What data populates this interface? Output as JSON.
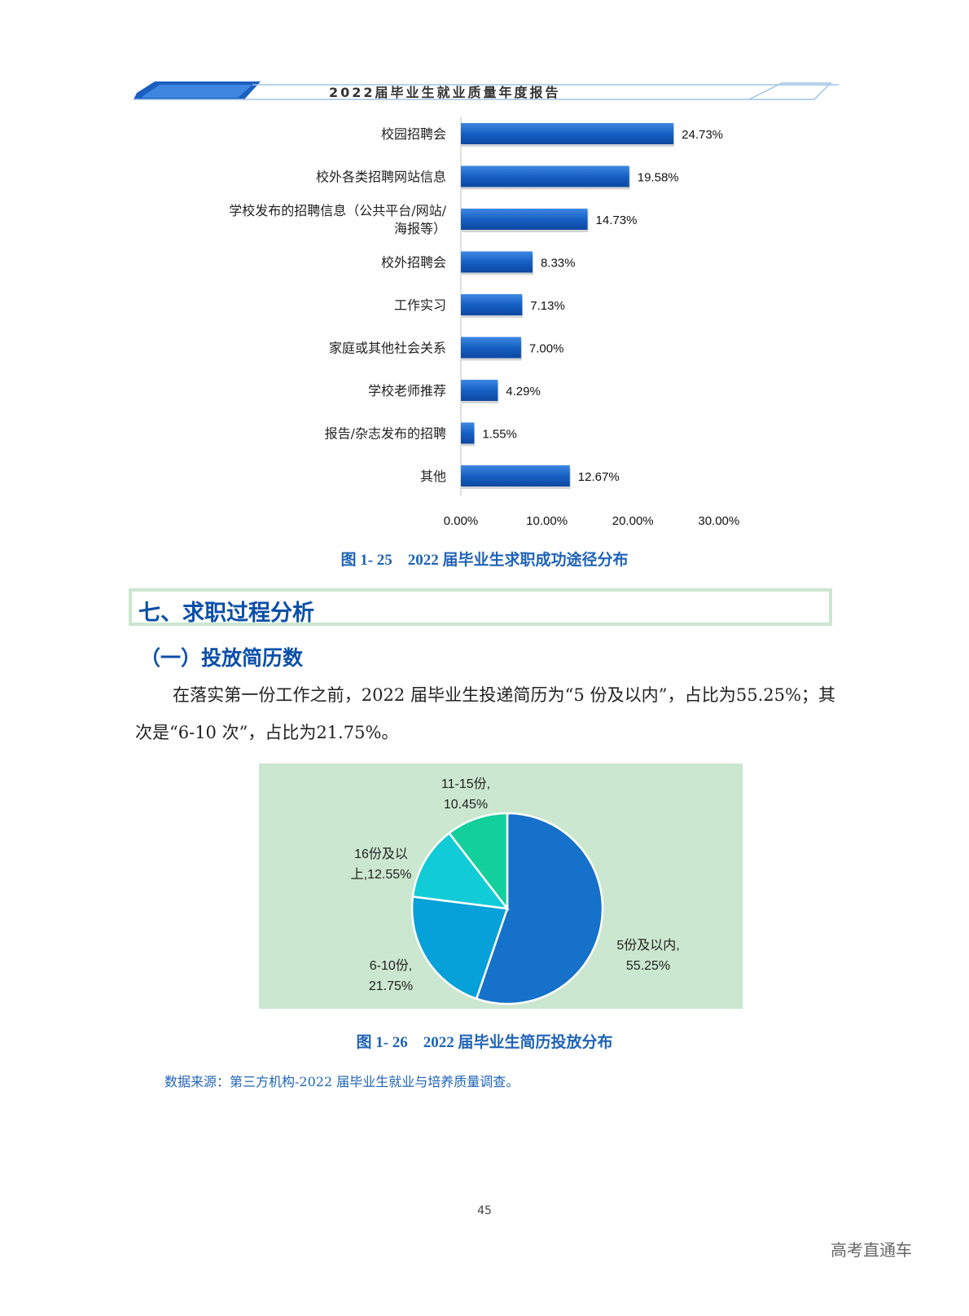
{
  "header": {
    "title": "2022届毕业生就业质量年度报告"
  },
  "chart_data": [
    {
      "type": "bar",
      "orientation": "horizontal",
      "categories": [
        "校园招聘会",
        "校外各类招聘网站信息",
        "学校发布的招聘信息（公共平台/网站/海报等）",
        "校外招聘会",
        "工作实习",
        "家庭或其他社会关系",
        "学校老师推荐",
        "报告/杂志发布的招聘",
        "其他"
      ],
      "category_lines": [
        [
          "校园招聘会"
        ],
        [
          "校外各类招聘网站信息"
        ],
        [
          "学校发布的招聘信息（公共平台/网站/",
          "海报等）"
        ],
        [
          "校外招聘会"
        ],
        [
          "工作实习"
        ],
        [
          "家庭或其他社会关系"
        ],
        [
          "学校老师推荐"
        ],
        [
          "报告/杂志发布的招聘"
        ],
        [
          "其他"
        ]
      ],
      "values": [
        24.73,
        19.58,
        14.73,
        8.33,
        7.13,
        7.0,
        4.29,
        1.55,
        12.67
      ],
      "value_labels": [
        "24.73%",
        "19.58%",
        "14.73%",
        "8.33%",
        "7.13%",
        "7.00%",
        "4.29%",
        "1.55%",
        "12.67%"
      ],
      "xlim": [
        0,
        30
      ],
      "xticks": [
        0,
        10,
        20,
        30
      ],
      "xtick_labels": [
        "0.00%",
        "10.00%",
        "20.00%",
        "30.00%"
      ],
      "grid": false,
      "bar_color": "#1660c4"
    },
    {
      "type": "pie",
      "slices": [
        {
          "label": "5份及以内,",
          "pct_label": "55.25%",
          "value": 55.25,
          "color": "#1571c9"
        },
        {
          "label": "6-10份,",
          "pct_label": "21.75%",
          "value": 21.75,
          "color": "#05a1d8"
        },
        {
          "label": "16份及以",
          "label2": "上,12.55%",
          "value": 12.55,
          "color": "#11ccd6"
        },
        {
          "label": "11-15份,",
          "pct_label": "10.45%",
          "value": 10.45,
          "color": "#13cf9c"
        }
      ],
      "background": "#cbe7cf"
    }
  ],
  "captions": {
    "fig1": "图 1- 25　2022 届毕业生求职成功途径分布",
    "fig2": "图 1- 26　2022 届毕业生简历投放分布"
  },
  "section": {
    "title": "七、求职过程分析",
    "subtitle": "（一）投放简历数",
    "paragraph": "在落实第一份工作之前，2022 届毕业生投递简历为“5 份及以内”，占比为55.25%；其次是“6-10 次”，占比为21.75%。"
  },
  "source_note": "数据来源：第三方机构-2022 届毕业生就业与培养质量调查。",
  "page_number": "45",
  "watermark": "高考直通车"
}
